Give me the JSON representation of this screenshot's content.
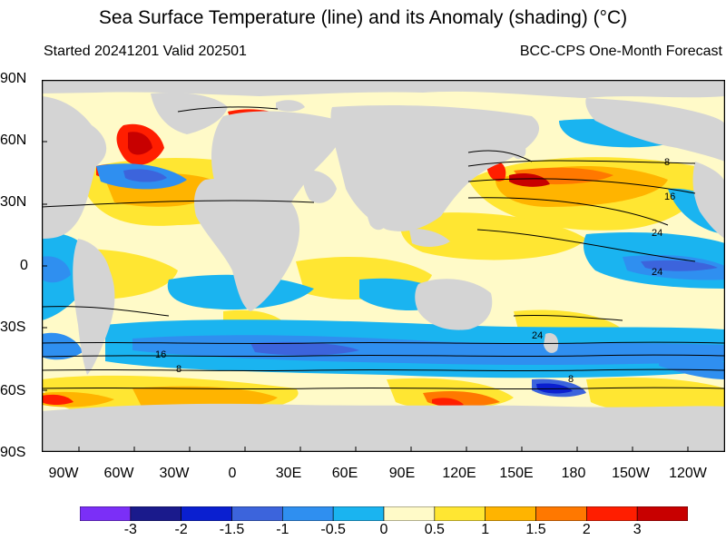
{
  "title": "Sea Surface Temperature (line) and its Anomaly (shading) (°C)",
  "subtitle_left": "Started 20241201  Valid 202501",
  "subtitle_right": "BCC-CPS One-Month Forecast",
  "lat_labels": [
    "90N",
    "60N",
    "30N",
    "0",
    "30S",
    "60S",
    "90S"
  ],
  "lon_labels": [
    "90W",
    "60W",
    "30W",
    "0",
    "30E",
    "60E",
    "90E",
    "120E",
    "150E",
    "180",
    "150W",
    "120W"
  ],
  "contour_labels": [
    "8",
    "16",
    "24",
    "24",
    "24",
    "16",
    "8",
    "8"
  ],
  "colorbar": {
    "colors": [
      "#7b2ff7",
      "#1a1a8c",
      "#0a1fd0",
      "#3c64dc",
      "#2f8ff0",
      "#1ab4f0",
      "#fffac8",
      "#ffe632",
      "#ffb400",
      "#ff7800",
      "#ff1e00",
      "#c80000"
    ],
    "labels": [
      "-3",
      "-2",
      "-1.5",
      "-1",
      "-0.5",
      "0",
      "0.5",
      "1",
      "1.5",
      "2",
      "3"
    ]
  },
  "palette": {
    "land": "#d4d4d4",
    "ocean_base": "#fffac8",
    "warm1": "#ffe632",
    "warm2": "#ffb400",
    "warm3": "#ff7800",
    "hot": "#ff1e00",
    "dark_red": "#c80000",
    "cool1": "#1ab4f0",
    "cool2": "#2f8ff0",
    "cool3": "#3c64dc",
    "cold": "#0a1fd0"
  }
}
